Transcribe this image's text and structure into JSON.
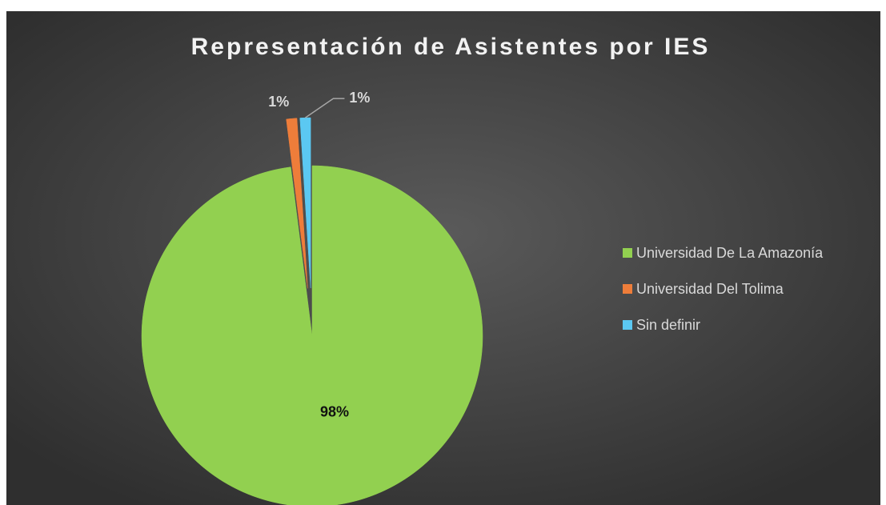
{
  "chart_data": {
    "type": "pie",
    "title": "Representación de Asistentes por IES",
    "categories": [
      "Universidad De La Amazonía",
      "Universidad Del Tolima",
      "Sin definir"
    ],
    "values": [
      98,
      1,
      1
    ],
    "value_labels": [
      "98%",
      "1%",
      "1%"
    ],
    "colors": [
      "#92d050",
      "#ee7d3a",
      "#5bc8f2"
    ],
    "legend": "right"
  }
}
